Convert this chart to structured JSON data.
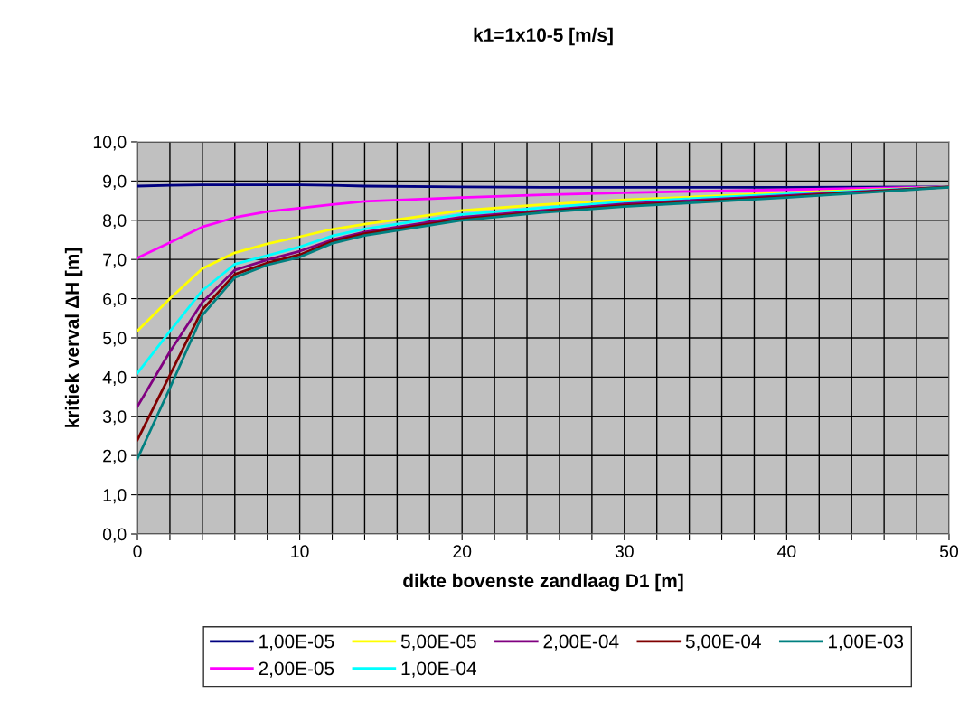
{
  "chart_data": {
    "type": "line",
    "title": "k1=1x10-5 [m/s]",
    "xlabel": "dikte bovenste zandlaag D1 [m]",
    "ylabel": "kritiek verval ΔH [m]",
    "x": [
      0,
      2,
      4,
      6,
      8,
      10,
      12,
      14,
      20,
      25,
      30,
      40,
      50
    ],
    "series": [
      {
        "name": "1,00E-05",
        "color": "#000080",
        "values": [
          8.87,
          8.89,
          8.9,
          8.9,
          8.9,
          8.9,
          8.89,
          8.87,
          8.85,
          8.84,
          8.84,
          8.84,
          8.85
        ]
      },
      {
        "name": "2,00E-05",
        "color": "#ff00ff",
        "values": [
          7.04,
          7.43,
          7.83,
          8.07,
          8.22,
          8.31,
          8.4,
          8.48,
          8.58,
          8.65,
          8.7,
          8.78,
          8.85
        ]
      },
      {
        "name": "5,00E-05",
        "color": "#ffff00",
        "values": [
          5.18,
          6.0,
          6.77,
          7.17,
          7.4,
          7.58,
          7.77,
          7.9,
          8.25,
          8.4,
          8.52,
          8.7,
          8.85
        ]
      },
      {
        "name": "1,00E-04",
        "color": "#00ffff",
        "values": [
          4.1,
          5.17,
          6.21,
          6.88,
          7.1,
          7.32,
          7.6,
          7.78,
          8.15,
          8.32,
          8.47,
          8.67,
          8.85
        ]
      },
      {
        "name": "2,00E-04",
        "color": "#800080",
        "values": [
          3.25,
          4.65,
          5.91,
          6.73,
          6.99,
          7.21,
          7.5,
          7.7,
          8.08,
          8.25,
          8.42,
          8.63,
          8.85
        ]
      },
      {
        "name": "5,00E-04",
        "color": "#800000",
        "values": [
          2.4,
          4.05,
          5.72,
          6.62,
          6.91,
          7.12,
          7.46,
          7.66,
          8.03,
          8.22,
          8.38,
          8.6,
          8.85
        ]
      },
      {
        "name": "1,00E-03",
        "color": "#008080",
        "values": [
          1.92,
          3.72,
          5.58,
          6.54,
          6.86,
          7.06,
          7.41,
          7.61,
          8.0,
          8.2,
          8.35,
          8.58,
          8.84
        ]
      }
    ],
    "xlim": [
      0,
      50
    ],
    "xticks": [
      0,
      {
        "value": 2,
        "label": null
      },
      {
        "value": 4,
        "label": null
      },
      {
        "value": 6,
        "label": null
      },
      {
        "value": 8,
        "label": null
      },
      10,
      {
        "value": 12,
        "label": null
      },
      {
        "value": 14,
        "label": null
      },
      {
        "value": 16,
        "label": null
      },
      {
        "value": 18,
        "label": null
      },
      20,
      {
        "value": 22,
        "label": null
      },
      {
        "value": 24,
        "label": null
      },
      {
        "value": 26,
        "label": null
      },
      {
        "value": 28,
        "label": null
      },
      30,
      {
        "value": 32,
        "label": null
      },
      {
        "value": 34,
        "label": null
      },
      {
        "value": 36,
        "label": null
      },
      {
        "value": 38,
        "label": null
      },
      40,
      {
        "value": 42,
        "label": null
      },
      {
        "value": 44,
        "label": null
      },
      {
        "value": 46,
        "label": null
      },
      {
        "value": 48,
        "label": null
      },
      50
    ],
    "ylim": [
      0,
      10
    ],
    "yticks": [
      {
        "value": 0,
        "label": "0,0"
      },
      {
        "value": 1,
        "label": "1,0"
      },
      {
        "value": 2,
        "label": "2,0"
      },
      {
        "value": 3,
        "label": "3,0"
      },
      {
        "value": 4,
        "label": "4,0"
      },
      {
        "value": 5,
        "label": "5,0"
      },
      {
        "value": 6,
        "label": "6,0"
      },
      {
        "value": 7,
        "label": "7,0"
      },
      {
        "value": 8,
        "label": "8,0"
      },
      {
        "value": 9,
        "label": "9,0"
      },
      {
        "value": 10,
        "label": "10,0"
      }
    ],
    "grid": true,
    "legend": "bottom",
    "marker": "none",
    "line_style": "solid"
  }
}
